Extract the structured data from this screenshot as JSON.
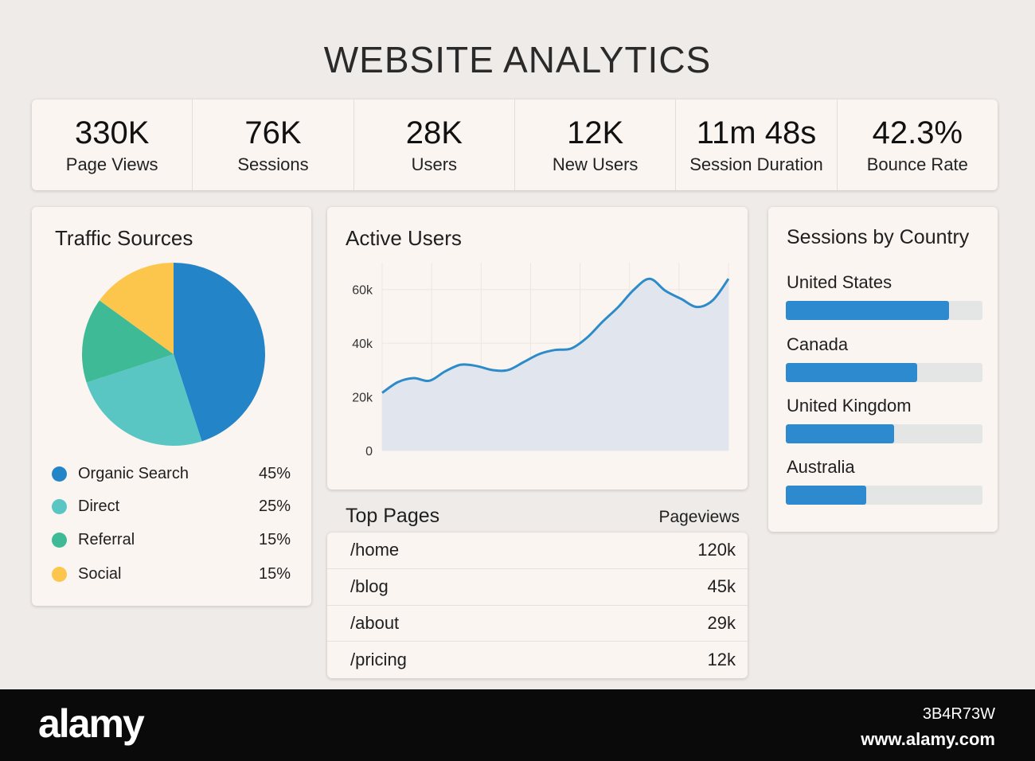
{
  "header": {
    "title": "WEBSITE ANALYTICS"
  },
  "kpis": [
    {
      "value": "330K",
      "label": "Page Views"
    },
    {
      "value": "76K",
      "label": "Sessions"
    },
    {
      "value": "28K",
      "label": "Users"
    },
    {
      "value": "12K",
      "label": "New Users"
    },
    {
      "value": "11m 48s",
      "label": "Session Duration"
    },
    {
      "value": "42.3%",
      "label": "Bounce Rate"
    }
  ],
  "traffic_sources": {
    "title": "Traffic Sources",
    "items": [
      {
        "name": "Organic Search",
        "pct": "45%",
        "value": 45,
        "color": "#2484c8"
      },
      {
        "name": "Direct",
        "pct": "25%",
        "value": 25,
        "color": "#5ac6c4"
      },
      {
        "name": "Referral",
        "pct": "15%",
        "value": 15,
        "color": "#3fba97"
      },
      {
        "name": "Social",
        "pct": "15%",
        "value": 15,
        "color": "#fcc64d"
      }
    ]
  },
  "active_users": {
    "title": "Active Users",
    "chart_data": {
      "type": "area",
      "title": "Active Users",
      "y_ticks": [
        "0",
        "20k",
        "40k",
        "60k"
      ],
      "y_tick_values": [
        0,
        20000,
        40000,
        60000
      ],
      "ylim": [
        0,
        70000
      ],
      "values": [
        21500,
        25500,
        27000,
        26000,
        29500,
        32000,
        31500,
        30000,
        30000,
        33000,
        36000,
        37500,
        38000,
        42000,
        48000,
        53500,
        60000,
        64000,
        59500,
        56500,
        53500,
        56000,
        64000
      ],
      "line_color": "#2d8bc9",
      "fill_color": "#e1e6ee",
      "grid": true
    }
  },
  "top_pages": {
    "title": "Top Pages",
    "column": "Pageviews",
    "rows": [
      {
        "path": "/home",
        "views": "120k"
      },
      {
        "path": "/blog",
        "views": "45k"
      },
      {
        "path": "/about",
        "views": "29k"
      },
      {
        "path": "/pricing",
        "views": "12k"
      }
    ]
  },
  "sessions_by_country": {
    "title": "Sessions by Country",
    "items": [
      {
        "name": "United States",
        "fraction": 0.83
      },
      {
        "name": "Canada",
        "fraction": 0.67
      },
      {
        "name": "United Kingdom",
        "fraction": 0.55
      },
      {
        "name": "Australia",
        "fraction": 0.41
      }
    ],
    "bar_color": "#2e8ace"
  },
  "footer": {
    "logo": "alamy",
    "image_id": "3B4R73W",
    "site": "www.alamy.com"
  }
}
